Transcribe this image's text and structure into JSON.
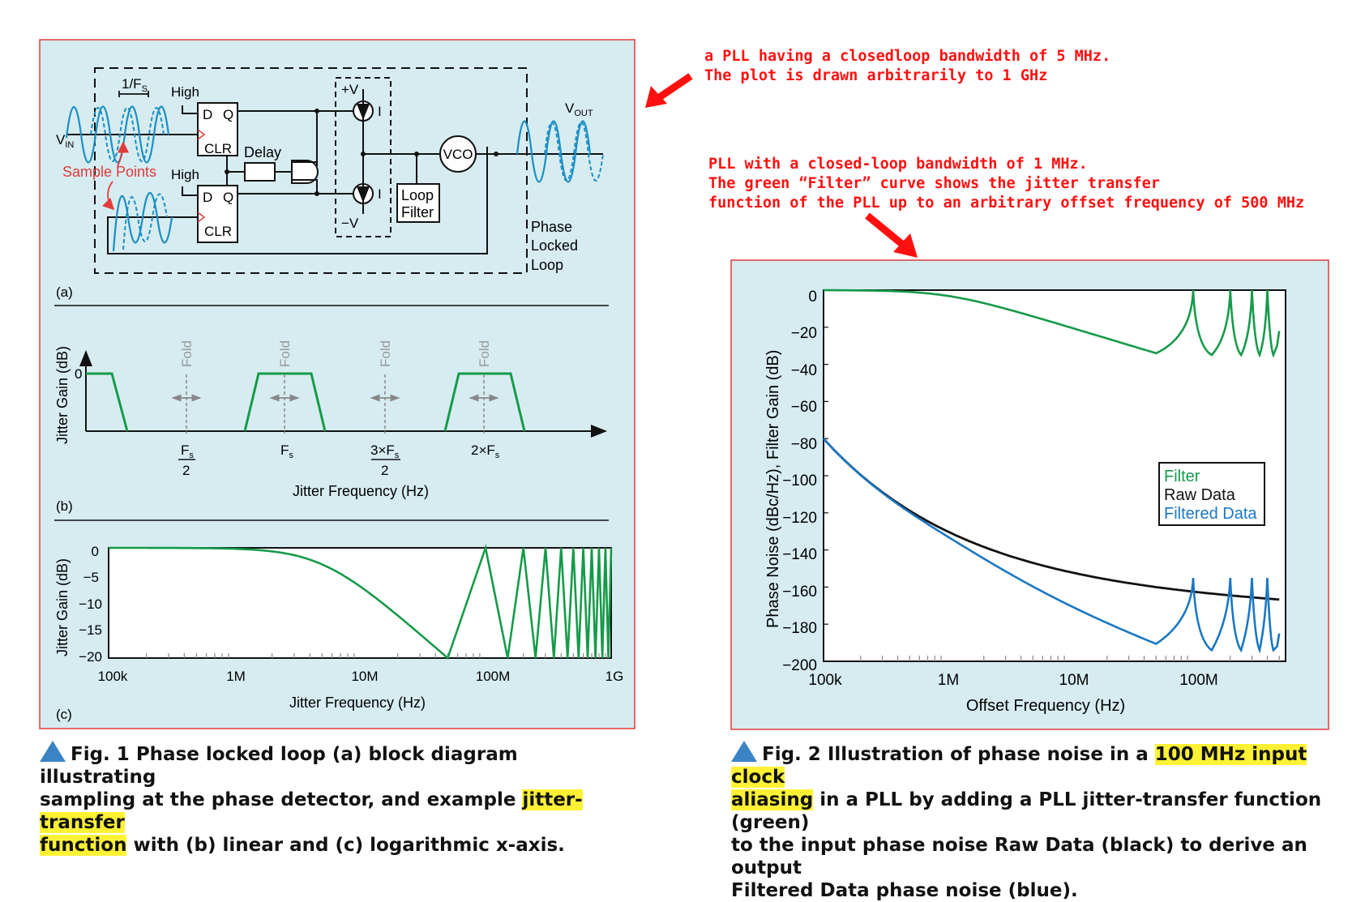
{
  "fig1": {
    "a": {
      "panel_label": "(a)",
      "sample_period": "1/F",
      "sample_period_sub": "S",
      "high_top": "High",
      "high_bottom": "High",
      "d": "D",
      "q": "Q",
      "clr": "CLR",
      "delay": "Delay",
      "vin": "V",
      "vin_sub": "IN",
      "vout": "V",
      "vout_sub": "OUT",
      "sample_points": "Sample Points",
      "plus_v": "+V",
      "minus_v": "−V",
      "i": "I",
      "loop_filter": [
        "Loop",
        "Filter"
      ],
      "vco": "VCO",
      "pll_label": [
        "Phase",
        "Locked",
        "Loop"
      ]
    },
    "b": {
      "panel_label": "(b)",
      "ylabel": "Jitter Gain (dB)",
      "xlabel": "Jitter Frequency (Hz)",
      "zero": "0",
      "fold": "Fold",
      "ticks": [
        "F",
        "F",
        "3×F",
        "2×F"
      ],
      "tick_sub": "s",
      "denominator": "2"
    },
    "c": {
      "panel_label": "(c)",
      "ylabel": "Jitter Gain (dB)",
      "xlabel": "Jitter Frequency (Hz)",
      "yticks": [
        "0",
        "−5",
        "−10",
        "−15",
        "−20"
      ],
      "xticks": [
        "100k",
        "1M",
        "10M",
        "100M",
        "1G"
      ]
    },
    "caption": {
      "lead": "Fig. 1  Phase locked loop (a) block diagram illustrating",
      "line2_pre": "sampling at the phase detector, and example ",
      "hl1": "jitter-transfer",
      "hl2": "function",
      "line3_post": " with (b) linear and (c) logarithmic x-axis."
    }
  },
  "fig2": {
    "ylabel": "Phase Noise (dBc/Hz), Filter Gain (dB)",
    "xlabel": "Offset Frequency (Hz)",
    "yticks": [
      "0",
      "−20",
      "−40",
      "−60",
      "−80",
      "−100",
      "−120",
      "−140",
      "−160",
      "−180",
      "−200"
    ],
    "xticks": [
      "100k",
      "1M",
      "10M",
      "100M"
    ],
    "legend": [
      "Filter",
      "Raw Data",
      "Filtered Data"
    ],
    "caption": {
      "pre": "Fig. 2  Illustration of phase noise in a ",
      "hl1": "100 MHz input clock",
      "hl2": "aliasing",
      "line2_post": " in a PLL by adding a PLL jitter-transfer function (green)",
      "line3": "to the input phase noise Raw Data (black) to derive an output",
      "line4": "Filtered Data phase noise (blue)."
    }
  },
  "notes": {
    "top": [
      "a PLL having a closedloop bandwidth of 5 MHz.",
      "The plot is drawn arbitrarily to 1 GHz"
    ],
    "middle": [
      "PLL with a closed-loop bandwidth of 1 MHz.",
      "The green “Filter” curve shows the jitter transfer",
      "function of the PLL up to an arbitrary offset frequency of 500 MHz"
    ]
  },
  "colors": {
    "panel_bg": "#d6ecf1",
    "panel_border": "#e23b3b",
    "green": "#169a4a",
    "blue": "#1a77c2",
    "black": "#111111",
    "annotation_red": "#ff1010",
    "highlight": "#fff235"
  },
  "chart_data": [
    {
      "type": "line",
      "name": "fig1c",
      "xscale": "log",
      "xlim": [
        100000,
        1000000000
      ],
      "ylim": [
        -20,
        0
      ],
      "xlabel": "Jitter Frequency (Hz)",
      "ylabel": "Jitter Gain (dB)",
      "series": [
        {
          "x": [
            100000,
            1000000,
            2000000,
            5000000,
            10000000,
            20000000,
            50000000,
            100000000,
            150000000,
            200000000,
            250000000,
            300000000,
            400000000,
            500000000,
            600000000,
            700000000,
            800000000,
            900000000,
            1000000000
          ],
          "y": [
            0,
            -0.2,
            -1,
            -4,
            -8,
            -13,
            -20,
            0,
            -20,
            0,
            -20,
            0,
            0,
            0,
            0,
            0,
            0,
            0,
            0
          ]
        }
      ]
    },
    {
      "type": "line",
      "name": "fig2",
      "xscale": "log",
      "xlim": [
        100000,
        500000000
      ],
      "ylim": [
        -200,
        0
      ],
      "xlabel": "Offset Frequency (Hz)",
      "ylabel": "Phase Noise (dBc/Hz), Filter Gain (dB)",
      "legend": "center-right",
      "series": [
        {
          "name": "Filter",
          "x": [
            100000,
            1000000,
            10000000,
            50000000,
            100000000,
            200000000,
            300000000,
            400000000,
            500000000
          ],
          "y": [
            0,
            -3,
            -20,
            -34,
            0,
            0,
            0,
            0,
            -22
          ]
        },
        {
          "name": "Raw Data",
          "x": [
            100000,
            1000000,
            10000000,
            100000000,
            500000000
          ],
          "y": [
            -80,
            -120,
            -140,
            -155,
            -162
          ]
        },
        {
          "name": "Filtered Data",
          "x": [
            100000,
            1000000,
            10000000,
            50000000,
            100000000,
            200000000,
            300000000,
            400000000,
            500000000
          ],
          "y": [
            -80,
            -123,
            -160,
            -186,
            -155,
            -155,
            -155,
            -155,
            -185
          ]
        }
      ]
    }
  ]
}
